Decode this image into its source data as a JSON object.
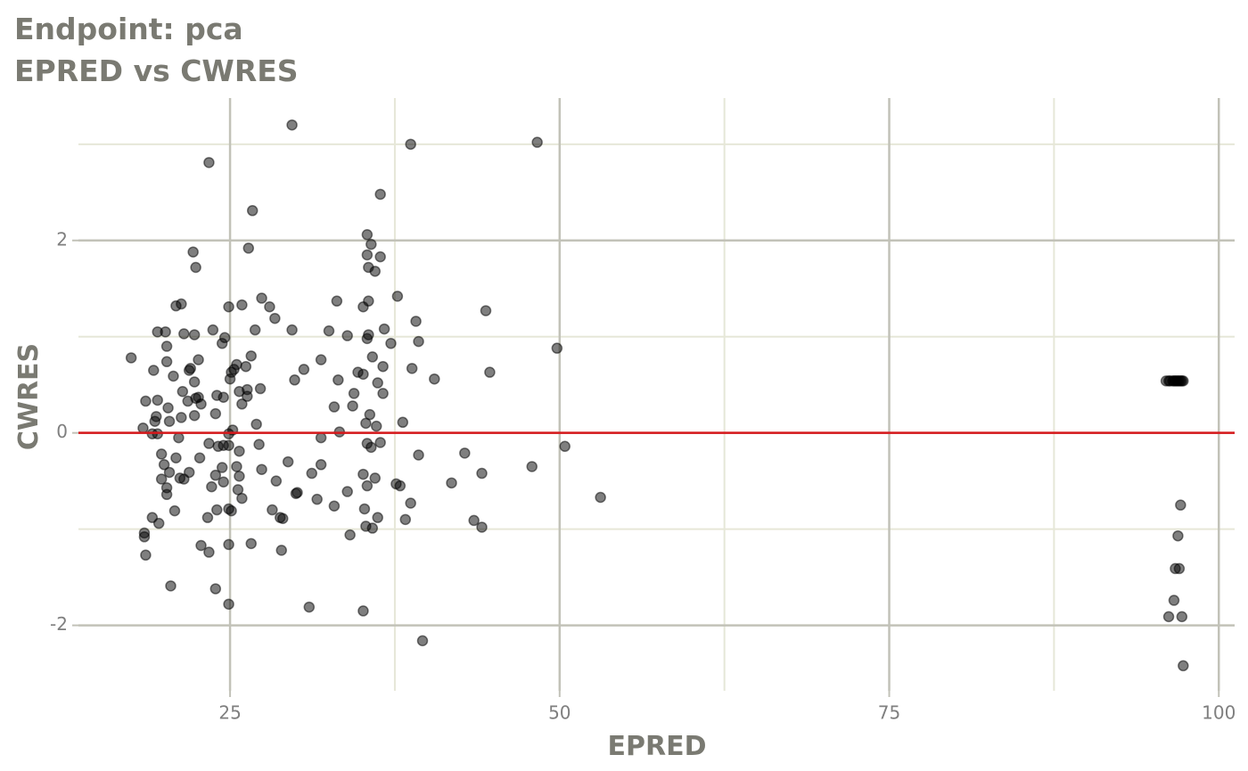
{
  "chart_data": {
    "type": "scatter",
    "title": "Endpoint:  pca",
    "subtitle": "EPRED vs CWRES",
    "x_label": "EPRED",
    "y_label": "CWRES",
    "xlim": [
      13.5,
      101.2
    ],
    "ylim": [
      -2.68,
      3.48
    ],
    "xticks": [
      25,
      50,
      75,
      100
    ],
    "yticks": [
      -2,
      0,
      2
    ],
    "x_minor": [
      37.5,
      62.5,
      87.5
    ],
    "y_minor": [
      -1,
      1,
      3
    ],
    "grid": true,
    "hline": 0,
    "hline_color": "#d7191c",
    "color": "#000000",
    "alpha": 0.5,
    "x": [
      17.5,
      29.7,
      38.7,
      48.3,
      23.4,
      36.4,
      26.7,
      35.4,
      26.4,
      35.7,
      22.2,
      35.4,
      36.4,
      22.4,
      35.5,
      36.0,
      21.3,
      20.9,
      27.4,
      33.1,
      37.7,
      35.5,
      24.9,
      25.9,
      28.0,
      35.1,
      44.4,
      28.4,
      39.1,
      23.7,
      26.9,
      29.7,
      32.5,
      36.7,
      19.5,
      20.1,
      21.5,
      22.3,
      33.9,
      35.5,
      35.4,
      24.6,
      24.4,
      37.2,
      39.3,
      20.2,
      49.8,
      26.6,
      35.8,
      22.6,
      20.2,
      31.9,
      25.5,
      26.2,
      36.6,
      22.0,
      21.9,
      19.2,
      30.6,
      38.8,
      25.3,
      25.1,
      34.7,
      44.7,
      20.7,
      35.1,
      40.5,
      25.0,
      29.9,
      33.2,
      22.3,
      36.2,
      26.3,
      27.3,
      21.4,
      25.7,
      34.4,
      36.6,
      24.0,
      24.5,
      26.3,
      22.4,
      22.6,
      18.6,
      19.5,
      21.8,
      22.8,
      25.9,
      34.3,
      32.9,
      20.3,
      23.9,
      35.6,
      22.3,
      19.4,
      21.3,
      19.3,
      20.4,
      27.0,
      35.3,
      36.1,
      38.1,
      18.4,
      19.1,
      19.5,
      25.2,
      33.3,
      24.9,
      31.9,
      21.1,
      36.4,
      35.4,
      23.4,
      27.2,
      50.4,
      24.9,
      24.1,
      24.5,
      35.7,
      25.7,
      42.8,
      19.8,
      39.3,
      20.9,
      22.7,
      29.4,
      20.0,
      31.9,
      47.9,
      24.4,
      25.5,
      27.4,
      21.9,
      20.4,
      31.2,
      35.1,
      44.1,
      23.9,
      25.7,
      21.2,
      21.5,
      19.8,
      28.5,
      36.0,
      41.8,
      24.5,
      35.4,
      37.6,
      37.9,
      23.6,
      25.6,
      20.2,
      33.9,
      30.1,
      30.0,
      20.2,
      25.9,
      53.1,
      31.6,
      38.7,
      32.9,
      28.2,
      24.0,
      24.9,
      25.1,
      35.2,
      20.8,
      23.3,
      19.1,
      28.8,
      29.0,
      36.2,
      38.3,
      43.5,
      19.6,
      35.8,
      35.3,
      44.1,
      18.5,
      34.1,
      18.5,
      24.9,
      22.8,
      26.6,
      28.9,
      23.4,
      18.6,
      20.5,
      23.9,
      24.9,
      31.0,
      35.1,
      39.6,
      96.0,
      96.2,
      96.3,
      96.5,
      96.6,
      96.7,
      96.8,
      96.9,
      97.0,
      97.1,
      97.2,
      97.3,
      97.1,
      96.9,
      96.7,
      97.0,
      96.6,
      96.2,
      97.2,
      97.3
    ],
    "values": [
      0.78,
      3.2,
      3.0,
      3.02,
      2.81,
      2.48,
      2.31,
      2.06,
      1.92,
      1.96,
      1.88,
      1.85,
      1.83,
      1.72,
      1.72,
      1.68,
      1.34,
      1.32,
      1.4,
      1.37,
      1.42,
      1.37,
      1.31,
      1.33,
      1.31,
      1.31,
      1.27,
      1.19,
      1.16,
      1.07,
      1.07,
      1.07,
      1.06,
      1.08,
      1.05,
      1.05,
      1.03,
      1.02,
      1.01,
      1.02,
      0.98,
      0.99,
      0.93,
      0.93,
      0.95,
      0.9,
      0.88,
      0.8,
      0.79,
      0.76,
      0.74,
      0.76,
      0.71,
      0.69,
      0.69,
      0.67,
      0.65,
      0.65,
      0.66,
      0.67,
      0.66,
      0.63,
      0.63,
      0.63,
      0.59,
      0.61,
      0.56,
      0.56,
      0.55,
      0.55,
      0.53,
      0.52,
      0.45,
      0.46,
      0.43,
      0.43,
      0.41,
      0.41,
      0.39,
      0.37,
      0.38,
      0.36,
      0.37,
      0.33,
      0.34,
      0.33,
      0.3,
      0.3,
      0.28,
      0.27,
      0.26,
      0.2,
      0.19,
      0.18,
      0.17,
      0.16,
      0.12,
      0.12,
      0.09,
      0.1,
      0.07,
      0.11,
      0.05,
      -0.01,
      -0.01,
      0.03,
      0.01,
      -0.01,
      -0.05,
      -0.05,
      -0.1,
      -0.11,
      -0.11,
      -0.12,
      -0.14,
      -0.13,
      -0.14,
      -0.13,
      -0.15,
      -0.19,
      -0.21,
      -0.22,
      -0.23,
      -0.26,
      -0.26,
      -0.3,
      -0.33,
      -0.33,
      -0.35,
      -0.36,
      -0.35,
      -0.38,
      -0.41,
      -0.41,
      -0.42,
      -0.43,
      -0.42,
      -0.44,
      -0.45,
      -0.47,
      -0.48,
      -0.48,
      -0.5,
      -0.47,
      -0.52,
      -0.51,
      -0.55,
      -0.53,
      -0.55,
      -0.56,
      -0.59,
      -0.57,
      -0.61,
      -0.62,
      -0.63,
      -0.64,
      -0.68,
      -0.67,
      -0.69,
      -0.73,
      -0.76,
      -0.8,
      -0.8,
      -0.79,
      -0.81,
      -0.79,
      -0.81,
      -0.88,
      -0.88,
      -0.88,
      -0.89,
      -0.88,
      -0.9,
      -0.91,
      -0.94,
      -0.99,
      -0.97,
      -0.98,
      -1.04,
      -1.06,
      -1.08,
      -1.16,
      -1.17,
      -1.15,
      -1.22,
      -1.24,
      -1.27,
      -1.59,
      -1.62,
      -1.78,
      -1.81,
      -1.85,
      -2.16,
      0.54,
      0.54,
      0.54,
      0.54,
      0.54,
      0.54,
      0.54,
      0.54,
      0.54,
      0.54,
      0.54,
      0.54,
      -0.75,
      -1.07,
      -1.41,
      -1.41,
      -1.74,
      -1.91,
      -1.91,
      -2.42
    ]
  }
}
